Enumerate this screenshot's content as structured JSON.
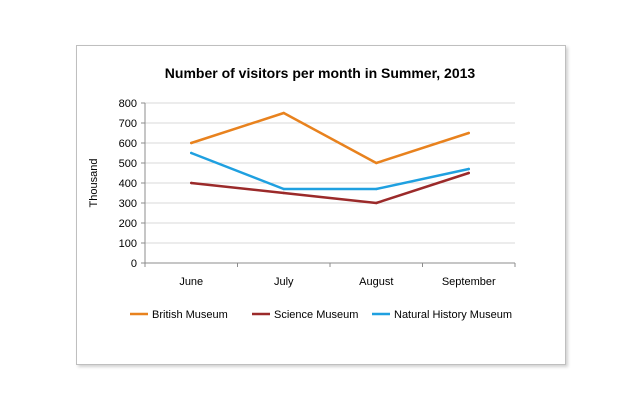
{
  "chart_data": {
    "type": "line",
    "title": "Number of visitors per month in Summer, 2013",
    "xlabel": "",
    "ylabel": "Thousand",
    "categories": [
      "June",
      "July",
      "August",
      "September"
    ],
    "ylim": [
      0,
      800
    ],
    "yticks": [
      "0",
      "100",
      "200",
      "300",
      "400",
      "500",
      "600",
      "700",
      "800"
    ],
    "grid": true,
    "legend_position": "bottom",
    "series": [
      {
        "name": "British Museum",
        "color": "#e8821e",
        "values": [
          600,
          750,
          500,
          650
        ]
      },
      {
        "name": "Science Museum",
        "color": "#9b2a2a",
        "values": [
          400,
          350,
          300,
          450
        ]
      },
      {
        "name": "Natural History Museum",
        "color": "#1fa0e0",
        "values": [
          550,
          370,
          370,
          470
        ]
      }
    ]
  }
}
